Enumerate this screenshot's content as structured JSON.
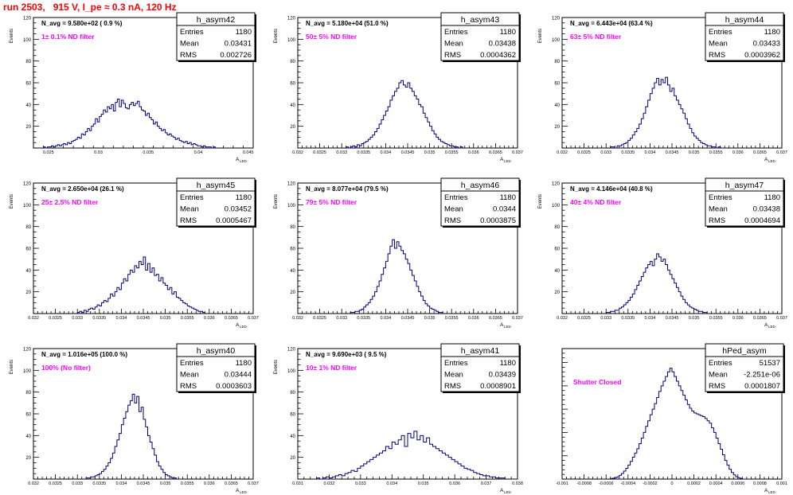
{
  "run_title": "run 2503,   915 V, I_pe ≈ 0.3 nA, 120 Hz",
  "colors": {
    "histogram": "#000080",
    "filter_label": "#ff00ff",
    "title": "#ff0000",
    "axes": "#000000"
  },
  "chart_data": [
    {
      "type": "histogram",
      "name": "h_asym42",
      "navg": "N_avg = 9.580e+02 ( 0.9 %)",
      "filter": "1± 0.1% ND filter",
      "stats": {
        "entries": "1180",
        "mean": "0.03431",
        "rms": "0.002726"
      },
      "xlabel": "A",
      "xlabel_sub": "LED",
      "ylabel": "Events",
      "xlim": [
        0.0235,
        0.0455
      ],
      "ylim": [
        0,
        120
      ],
      "xticks": [
        0.025,
        0.03,
        0.035,
        0.04,
        0.045
      ],
      "xtick_labels": [
        "0.025",
        "0.03",
        "0.035",
        "0.04",
        "0.045"
      ],
      "yticks": [
        20,
        40,
        60,
        80,
        100,
        120
      ],
      "bins_start": 0.0245,
      "bin_width": 0.0002,
      "counts": [
        1,
        0,
        1,
        1,
        2,
        1,
        2,
        3,
        2,
        3,
        4,
        3,
        5,
        4,
        6,
        7,
        8,
        10,
        9,
        13,
        12,
        15,
        18,
        16,
        20,
        22,
        27,
        24,
        29,
        31,
        35,
        33,
        38,
        36,
        40,
        34,
        42,
        45,
        38,
        44,
        41,
        37,
        36,
        40,
        42,
        39,
        41,
        43,
        38,
        35,
        34,
        30,
        32,
        28,
        26,
        22,
        24,
        20,
        18,
        16,
        17,
        14,
        12,
        13,
        11,
        10,
        8,
        9,
        7,
        6,
        5,
        6,
        4,
        5,
        3,
        4,
        3,
        2,
        2,
        1,
        2,
        1,
        1,
        1,
        0,
        1
      ]
    },
    {
      "type": "histogram",
      "name": "h_asym43",
      "navg": "N_avg = 5.180e+04 (51.0 %)",
      "filter": "50± 5% ND filter",
      "stats": {
        "entries": "1180",
        "mean": "0.03438",
        "rms": "0.0004362"
      },
      "xlabel": "A",
      "xlabel_sub": "LED",
      "ylabel": "Events",
      "xlim": [
        0.032,
        0.037
      ],
      "ylim": [
        0,
        120
      ],
      "xticks": [
        0.032,
        0.0325,
        0.033,
        0.0335,
        0.034,
        0.0345,
        0.035,
        0.0355,
        0.036,
        0.0365,
        0.037
      ],
      "xtick_labels": [
        "0.032",
        "0.0325",
        "0.033",
        "0.0335",
        "0.034",
        "0.0345",
        "0.035",
        "0.0355",
        "0.036",
        "0.0365",
        "0.037"
      ],
      "yticks": [
        20,
        40,
        60,
        80,
        100,
        120
      ],
      "bins_start": 0.0331,
      "bin_width": 5e-05,
      "counts": [
        1,
        0,
        1,
        2,
        1,
        3,
        2,
        4,
        5,
        6,
        8,
        10,
        12,
        15,
        18,
        22,
        26,
        30,
        34,
        38,
        44,
        48,
        52,
        55,
        60,
        62,
        58,
        56,
        60,
        55,
        52,
        48,
        45,
        40,
        38,
        32,
        28,
        24,
        20,
        16,
        13,
        10,
        8,
        6,
        5,
        4,
        3,
        2,
        2,
        1,
        1,
        0,
        1
      ]
    },
    {
      "type": "histogram",
      "name": "h_asym44",
      "navg": "N_avg = 6.443e+04 (63.4 %)",
      "filter": "63± 5% ND filter",
      "stats": {
        "entries": "1180",
        "mean": "0.03433",
        "rms": "0.0003962"
      },
      "xlabel": "A",
      "xlabel_sub": "LED",
      "ylabel": "Events",
      "xlim": [
        0.032,
        0.037
      ],
      "ylim": [
        0,
        120
      ],
      "xticks": [
        0.032,
        0.0325,
        0.033,
        0.0335,
        0.034,
        0.0345,
        0.035,
        0.0355,
        0.036,
        0.0365,
        0.037
      ],
      "xtick_labels": [
        "0.032",
        "0.0325",
        "0.033",
        "0.0335",
        "0.034",
        "0.0345",
        "0.035",
        "0.0355",
        "0.036",
        "0.0365",
        "0.037"
      ],
      "yticks": [
        20,
        40,
        60,
        80,
        100,
        120
      ],
      "bins_start": 0.0331,
      "bin_width": 5e-05,
      "counts": [
        1,
        1,
        0,
        2,
        2,
        3,
        4,
        5,
        7,
        9,
        12,
        15,
        18,
        22,
        27,
        32,
        38,
        44,
        50,
        55,
        60,
        64,
        58,
        63,
        60,
        65,
        58,
        52,
        55,
        48,
        44,
        40,
        36,
        32,
        27,
        22,
        18,
        14,
        11,
        9,
        7,
        5,
        4,
        3,
        2,
        2,
        1,
        1,
        0,
        1
      ]
    },
    {
      "type": "histogram",
      "name": "h_asym45",
      "navg": "N_avg = 2.650e+04 (26.1 %)",
      "filter": "25± 2.5% ND filter",
      "stats": {
        "entries": "1180",
        "mean": "0.03452",
        "rms": "0.0005467"
      },
      "xlabel": "A",
      "xlabel_sub": "LED",
      "ylabel": "Events",
      "xlim": [
        0.032,
        0.037
      ],
      "ylim": [
        0,
        120
      ],
      "xticks": [
        0.032,
        0.0325,
        0.033,
        0.0335,
        0.034,
        0.0345,
        0.035,
        0.0355,
        0.036,
        0.0365,
        0.037
      ],
      "xtick_labels": [
        "0.032",
        "0.0325",
        "0.033",
        "0.0335",
        "0.034",
        "0.0345",
        "0.035",
        "0.0355",
        "0.036",
        "0.0365",
        "0.037"
      ],
      "yticks": [
        20,
        40,
        60,
        80,
        100,
        120
      ],
      "bins_start": 0.033,
      "bin_width": 5e-05,
      "counts": [
        1,
        2,
        1,
        3,
        2,
        4,
        5,
        4,
        6,
        8,
        7,
        10,
        12,
        11,
        14,
        18,
        16,
        20,
        24,
        22,
        28,
        32,
        30,
        36,
        40,
        38,
        44,
        42,
        48,
        45,
        52,
        40,
        46,
        38,
        42,
        35,
        36,
        30,
        33,
        28,
        26,
        22,
        24,
        18,
        20,
        15,
        14,
        12,
        10,
        9,
        7,
        6,
        5,
        4,
        3,
        2,
        2,
        1
      ]
    },
    {
      "type": "histogram",
      "name": "h_asym46",
      "navg": "N_avg = 8.077e+04 (79.5 %)",
      "filter": "79± 5% ND filter",
      "stats": {
        "entries": "1180",
        "mean": "0.0344",
        "rms": "0.0003875"
      },
      "xlabel": "A",
      "xlabel_sub": "LED",
      "ylabel": "Events",
      "xlim": [
        0.032,
        0.037
      ],
      "ylim": [
        0,
        120
      ],
      "xticks": [
        0.032,
        0.0325,
        0.033,
        0.0335,
        0.034,
        0.0345,
        0.035,
        0.0355,
        0.036,
        0.0365,
        0.037
      ],
      "xtick_labels": [
        "0.032",
        "0.0325",
        "0.033",
        "0.0335",
        "0.034",
        "0.0345",
        "0.035",
        "0.0355",
        "0.036",
        "0.0365",
        "0.037"
      ],
      "yticks": [
        20,
        40,
        60,
        80,
        100,
        120
      ],
      "bins_start": 0.0332,
      "bin_width": 5e-05,
      "counts": [
        1,
        1,
        2,
        2,
        3,
        4,
        6,
        8,
        10,
        13,
        16,
        20,
        25,
        30,
        36,
        42,
        48,
        55,
        62,
        68,
        60,
        66,
        62,
        58,
        55,
        50,
        46,
        40,
        35,
        30,
        25,
        20,
        16,
        12,
        9,
        7,
        5,
        4,
        3,
        2,
        1,
        1
      ]
    },
    {
      "type": "histogram",
      "name": "h_asym47",
      "navg": "N_avg = 4.146e+04 (40.8 %)",
      "filter": "40± 4% ND filter",
      "stats": {
        "entries": "1180",
        "mean": "0.03438",
        "rms": "0.0004694"
      },
      "xlabel": "A",
      "xlabel_sub": "LED",
      "ylabel": "Events",
      "xlim": [
        0.032,
        0.037
      ],
      "ylim": [
        0,
        120
      ],
      "xticks": [
        0.032,
        0.0325,
        0.033,
        0.0335,
        0.034,
        0.0345,
        0.035,
        0.0355,
        0.036,
        0.0365,
        0.037
      ],
      "xtick_labels": [
        "0.032",
        "0.0325",
        "0.033",
        "0.0335",
        "0.034",
        "0.0345",
        "0.035",
        "0.0355",
        "0.036",
        "0.0365",
        "0.037"
      ],
      "yticks": [
        20,
        40,
        60,
        80,
        100,
        120
      ],
      "bins_start": 0.033,
      "bin_width": 5e-05,
      "counts": [
        1,
        1,
        2,
        2,
        3,
        3,
        5,
        6,
        8,
        10,
        12,
        15,
        18,
        22,
        26,
        30,
        34,
        38,
        42,
        45,
        48,
        44,
        50,
        55,
        52,
        48,
        50,
        45,
        40,
        36,
        32,
        28,
        24,
        20,
        16,
        13,
        10,
        8,
        6,
        5,
        4,
        3,
        2,
        2,
        1,
        1
      ]
    },
    {
      "type": "histogram",
      "name": "h_asym40",
      "navg": "N_avg = 1.016e+05 (100.0 %)",
      "filter": "100% (No filter)",
      "stats": {
        "entries": "1180",
        "mean": "0.03444",
        "rms": "0.0003603"
      },
      "xlabel": "A",
      "xlabel_sub": "LED",
      "ylabel": "Events",
      "xlim": [
        0.032,
        0.037
      ],
      "ylim": [
        0,
        120
      ],
      "xticks": [
        0.032,
        0.0325,
        0.033,
        0.0335,
        0.034,
        0.0345,
        0.035,
        0.0355,
        0.036,
        0.0365,
        0.037
      ],
      "xtick_labels": [
        "0.032",
        "0.0325",
        "0.033",
        "0.0335",
        "0.034",
        "0.0345",
        "0.035",
        "0.0355",
        "0.036",
        "0.0365",
        "0.037"
      ],
      "yticks": [
        20,
        40,
        60,
        80,
        100,
        120
      ],
      "bins_start": 0.0332,
      "bin_width": 5e-05,
      "counts": [
        1,
        1,
        2,
        2,
        3,
        4,
        5,
        7,
        9,
        12,
        15,
        19,
        24,
        30,
        36,
        42,
        50,
        56,
        62,
        68,
        72,
        78,
        70,
        76,
        62,
        66,
        55,
        48,
        40,
        34,
        28,
        22,
        16,
        12,
        9,
        6,
        4,
        3,
        2,
        1,
        1
      ]
    },
    {
      "type": "histogram",
      "name": "h_asym41",
      "navg": "N_avg = 9.690e+03 ( 9.5 %)",
      "filter": "10± 1% ND filter",
      "stats": {
        "entries": "1180",
        "mean": "0.03439",
        "rms": "0.0008901"
      },
      "xlabel": "A",
      "xlabel_sub": "LED",
      "ylabel": "Events",
      "xlim": [
        0.031,
        0.038
      ],
      "ylim": [
        0,
        120
      ],
      "xticks": [
        0.031,
        0.032,
        0.033,
        0.034,
        0.035,
        0.036,
        0.037,
        0.038
      ],
      "xtick_labels": [
        "0.031",
        "0.032",
        "0.033",
        "0.034",
        "0.035",
        "0.036",
        "0.037",
        "0.038"
      ],
      "yticks": [
        20,
        40,
        60,
        80,
        100,
        120
      ],
      "bins_start": 0.0316,
      "bin_width": 0.0001,
      "counts": [
        1,
        0,
        1,
        2,
        1,
        2,
        3,
        4,
        3,
        5,
        6,
        8,
        7,
        10,
        12,
        14,
        16,
        18,
        20,
        22,
        24,
        26,
        30,
        28,
        34,
        32,
        36,
        40,
        30,
        42,
        38,
        44,
        36,
        40,
        34,
        38,
        32,
        30,
        28,
        26,
        24,
        22,
        20,
        18,
        16,
        14,
        12,
        10,
        9,
        8,
        6,
        5,
        4,
        3,
        3,
        2,
        2,
        1,
        1,
        1
      ]
    },
    {
      "type": "histogram",
      "name": "hPed_asym",
      "navg": "",
      "filter": "Shutter Closed",
      "stats": {
        "entries": "51537",
        "mean": "-2.251e-06",
        "rms": "0.0001807"
      },
      "xlabel": "A",
      "xlabel_sub": "LED",
      "ylabel": "",
      "xlim": [
        -0.001,
        0.001
      ],
      "ylim": [
        0,
        2800
      ],
      "xticks": [
        -0.001,
        -0.0008,
        -0.0006,
        -0.0004,
        -0.0002,
        0,
        0.0002,
        0.0004,
        0.0006,
        0.0008,
        0.001
      ],
      "xtick_labels": [
        "-0.001",
        "-0.0008",
        "-0.0006",
        "-0.0004",
        "-0.0002",
        "0",
        "0.0002",
        "0.0004",
        "0.0006",
        "0.0008",
        "0.001"
      ],
      "yticks": [],
      "bins_start": -0.00056,
      "bin_width": 2e-05,
      "counts": [
        10,
        20,
        30,
        50,
        80,
        120,
        170,
        230,
        300,
        380,
        470,
        560,
        650,
        760,
        880,
        1000,
        1130,
        1250,
        1380,
        1500,
        1620,
        1750,
        1880,
        2000,
        2100,
        2200,
        2300,
        2380,
        2300,
        2200,
        2100,
        2000,
        1900,
        1800,
        1700,
        1600,
        1520,
        1460,
        1420,
        1400,
        1380,
        1360,
        1340,
        1300,
        1250,
        1200,
        1100,
        1000,
        880,
        760,
        640,
        520,
        400,
        300,
        210,
        140,
        90,
        50,
        30,
        15
      ]
    }
  ]
}
